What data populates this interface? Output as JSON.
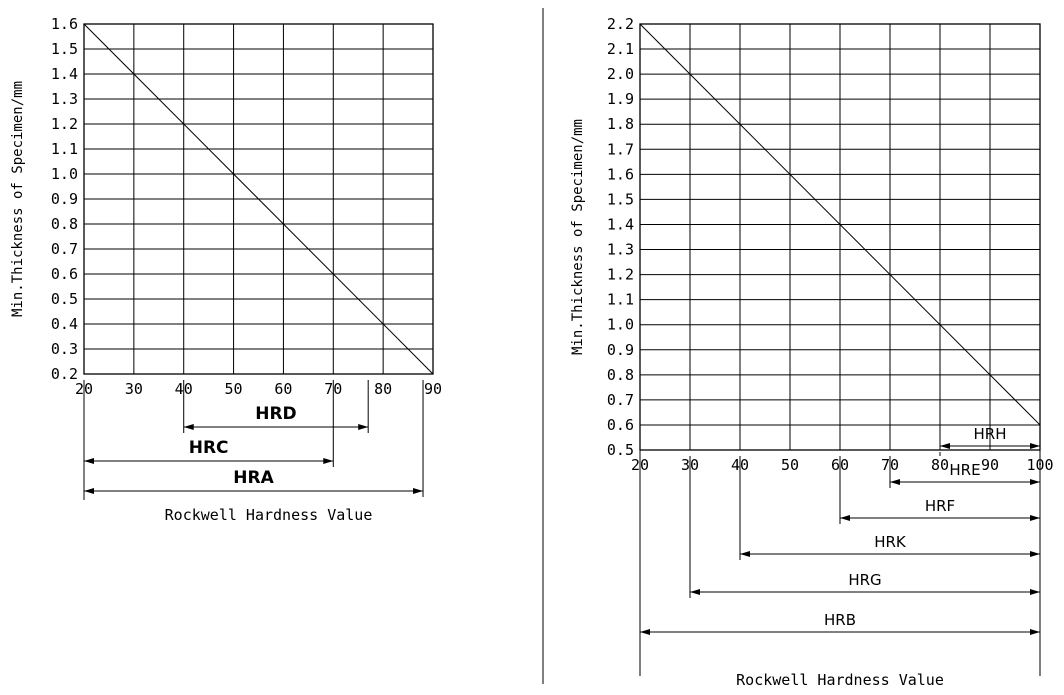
{
  "chart_data": [
    {
      "type": "line",
      "title": "",
      "xlabel": "Rockwell Hardness Value",
      "ylabel": "Min.Thickness of Specimen/mm",
      "xlim": [
        20,
        90
      ],
      "ylim": [
        0.2,
        1.6
      ],
      "x_ticks": [
        "20",
        "30",
        "40",
        "50",
        "60",
        "70",
        "80",
        "90"
      ],
      "y_ticks": [
        "0.2",
        "0.3",
        "0.4",
        "0.5",
        "0.6",
        "0.7",
        "0.8",
        "0.9",
        "1.0",
        "1.1",
        "1.2",
        "1.3",
        "1.4",
        "1.5",
        "1.6"
      ],
      "grid": true,
      "series": [
        {
          "x": [
            20,
            90
          ],
          "y": [
            1.6,
            0.2
          ]
        }
      ],
      "scale_ranges": [
        {
          "name": "HRD",
          "from": 40,
          "to": 77,
          "bold": true
        },
        {
          "name": "HRC",
          "from": 20,
          "to": 70,
          "bold": true
        },
        {
          "name": "HRA",
          "from": 20,
          "to": 88,
          "bold": true
        }
      ]
    },
    {
      "type": "line",
      "title": "",
      "xlabel": "Rockwell Hardness Value",
      "ylabel": "Min.Thickness of Specimen/mm",
      "xlim": [
        20,
        100
      ],
      "ylim": [
        0.5,
        2.2
      ],
      "x_ticks": [
        "20",
        "30",
        "40",
        "50",
        "60",
        "70",
        "80",
        "90",
        "100"
      ],
      "y_ticks": [
        "0.5",
        "0.6",
        "0.7",
        "0.8",
        "0.9",
        "1.0",
        "1.1",
        "1.2",
        "1.3",
        "1.4",
        "1.5",
        "1.6",
        "1.7",
        "1.8",
        "1.9",
        "2.0",
        "2.1",
        "2.2"
      ],
      "grid": true,
      "series": [
        {
          "x": [
            20,
            100
          ],
          "y": [
            2.2,
            0.6
          ]
        }
      ],
      "scale_ranges": [
        {
          "name": "HRH",
          "from": 80,
          "to": 100,
          "bold": false
        },
        {
          "name": "HRE",
          "from": 70,
          "to": 100,
          "bold": false
        },
        {
          "name": "HRF",
          "from": 60,
          "to": 100,
          "bold": false
        },
        {
          "name": "HRK",
          "from": 40,
          "to": 100,
          "bold": false
        },
        {
          "name": "HRG",
          "from": 30,
          "to": 100,
          "bold": false
        },
        {
          "name": "HRB",
          "from": 20,
          "to": 100,
          "bold": false
        }
      ]
    }
  ]
}
